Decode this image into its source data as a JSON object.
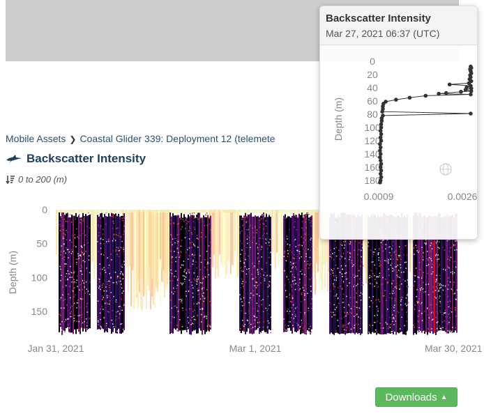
{
  "breadcrumb": {
    "root": "Mobile Assets",
    "current": "Coastal Glider 339: Deployment 12 (telemete"
  },
  "page": {
    "title": "Backscatter Intensity",
    "depth_range": "0 to 200 (m)"
  },
  "downloads_label": "Downloads",
  "icons": {
    "asset": "glider-icon",
    "depth": "depth-sort-icon",
    "breadcrumb_separator": "chevron-right-icon",
    "downloads_caret": "caret-up-icon",
    "popup_mode": "globe-icon"
  },
  "colors": {
    "title": "#1f3f5d",
    "downloads_button": "#5cb85c",
    "cursor_line": "#ff0000",
    "profile_points": "#333333"
  },
  "popup": {
    "title": "Backscatter Intensity",
    "timestamp": "Mar 27, 2021 06:37 (UTC)"
  },
  "chart_data": [
    {
      "type": "heatmap",
      "ylabel": "Depth (m)",
      "y_ticks": [
        "0",
        "50",
        "100",
        "150"
      ],
      "x_ticks": [
        "Jan 31, 2021",
        "Mar 1, 2021",
        "Mar 30, 2021"
      ],
      "ylim": [
        0,
        185
      ],
      "xlim": [
        "Jan 31, 2021",
        "Mar 30, 2021"
      ],
      "y_inverted": true,
      "cursor_date": "Mar 27, 2021"
    },
    {
      "type": "scatter",
      "ylabel": "Depth (m)",
      "y_ticks": [
        "0",
        "20",
        "40",
        "60",
        "80",
        "100",
        "120",
        "140",
        "160",
        "180"
      ],
      "x_ticks": [
        "0.0009",
        "0.0026"
      ],
      "y_inverted": true,
      "ylim": [
        0,
        185
      ],
      "xlim": [
        0.0009,
        0.0026
      ],
      "points": [
        [
          0.00255,
          8
        ],
        [
          0.00256,
          10
        ],
        [
          0.00254,
          12
        ],
        [
          0.00255,
          15
        ],
        [
          0.00256,
          18
        ],
        [
          0.00254,
          21
        ],
        [
          0.00255,
          24
        ],
        [
          0.00253,
          27
        ],
        [
          0.00256,
          30
        ],
        [
          0.00252,
          33
        ],
        [
          0.00218,
          35
        ],
        [
          0.00255,
          37
        ],
        [
          0.00248,
          39
        ],
        [
          0.00256,
          41
        ],
        [
          0.00246,
          43
        ],
        [
          0.00256,
          45
        ],
        [
          0.00238,
          46
        ],
        [
          0.00212,
          48
        ],
        [
          0.00199,
          49
        ],
        [
          0.00255,
          50
        ],
        [
          0.00176,
          52
        ],
        [
          0.00148,
          55
        ],
        [
          0.00124,
          58
        ],
        [
          0.00106,
          61
        ],
        [
          0.00102,
          64
        ],
        [
          0.00101,
          68
        ],
        [
          0.00101,
          72
        ],
        [
          0.001,
          76
        ],
        [
          0.00255,
          79
        ],
        [
          0.00101,
          82
        ],
        [
          0.00099,
          86
        ],
        [
          0.00099,
          90
        ],
        [
          0.00098,
          95
        ],
        [
          0.00098,
          100
        ],
        [
          0.00097,
          105
        ],
        [
          0.00098,
          110
        ],
        [
          0.00097,
          115
        ],
        [
          0.00098,
          120
        ],
        [
          0.00096,
          125
        ],
        [
          0.00097,
          130
        ],
        [
          0.00096,
          135
        ],
        [
          0.00097,
          140
        ],
        [
          0.00096,
          145
        ],
        [
          0.00097,
          150
        ],
        [
          0.00098,
          155
        ],
        [
          0.00097,
          160
        ],
        [
          0.00098,
          165
        ],
        [
          0.00097,
          170
        ],
        [
          0.00098,
          175
        ],
        [
          0.00097,
          180
        ],
        [
          0.00096,
          183
        ]
      ]
    }
  ]
}
